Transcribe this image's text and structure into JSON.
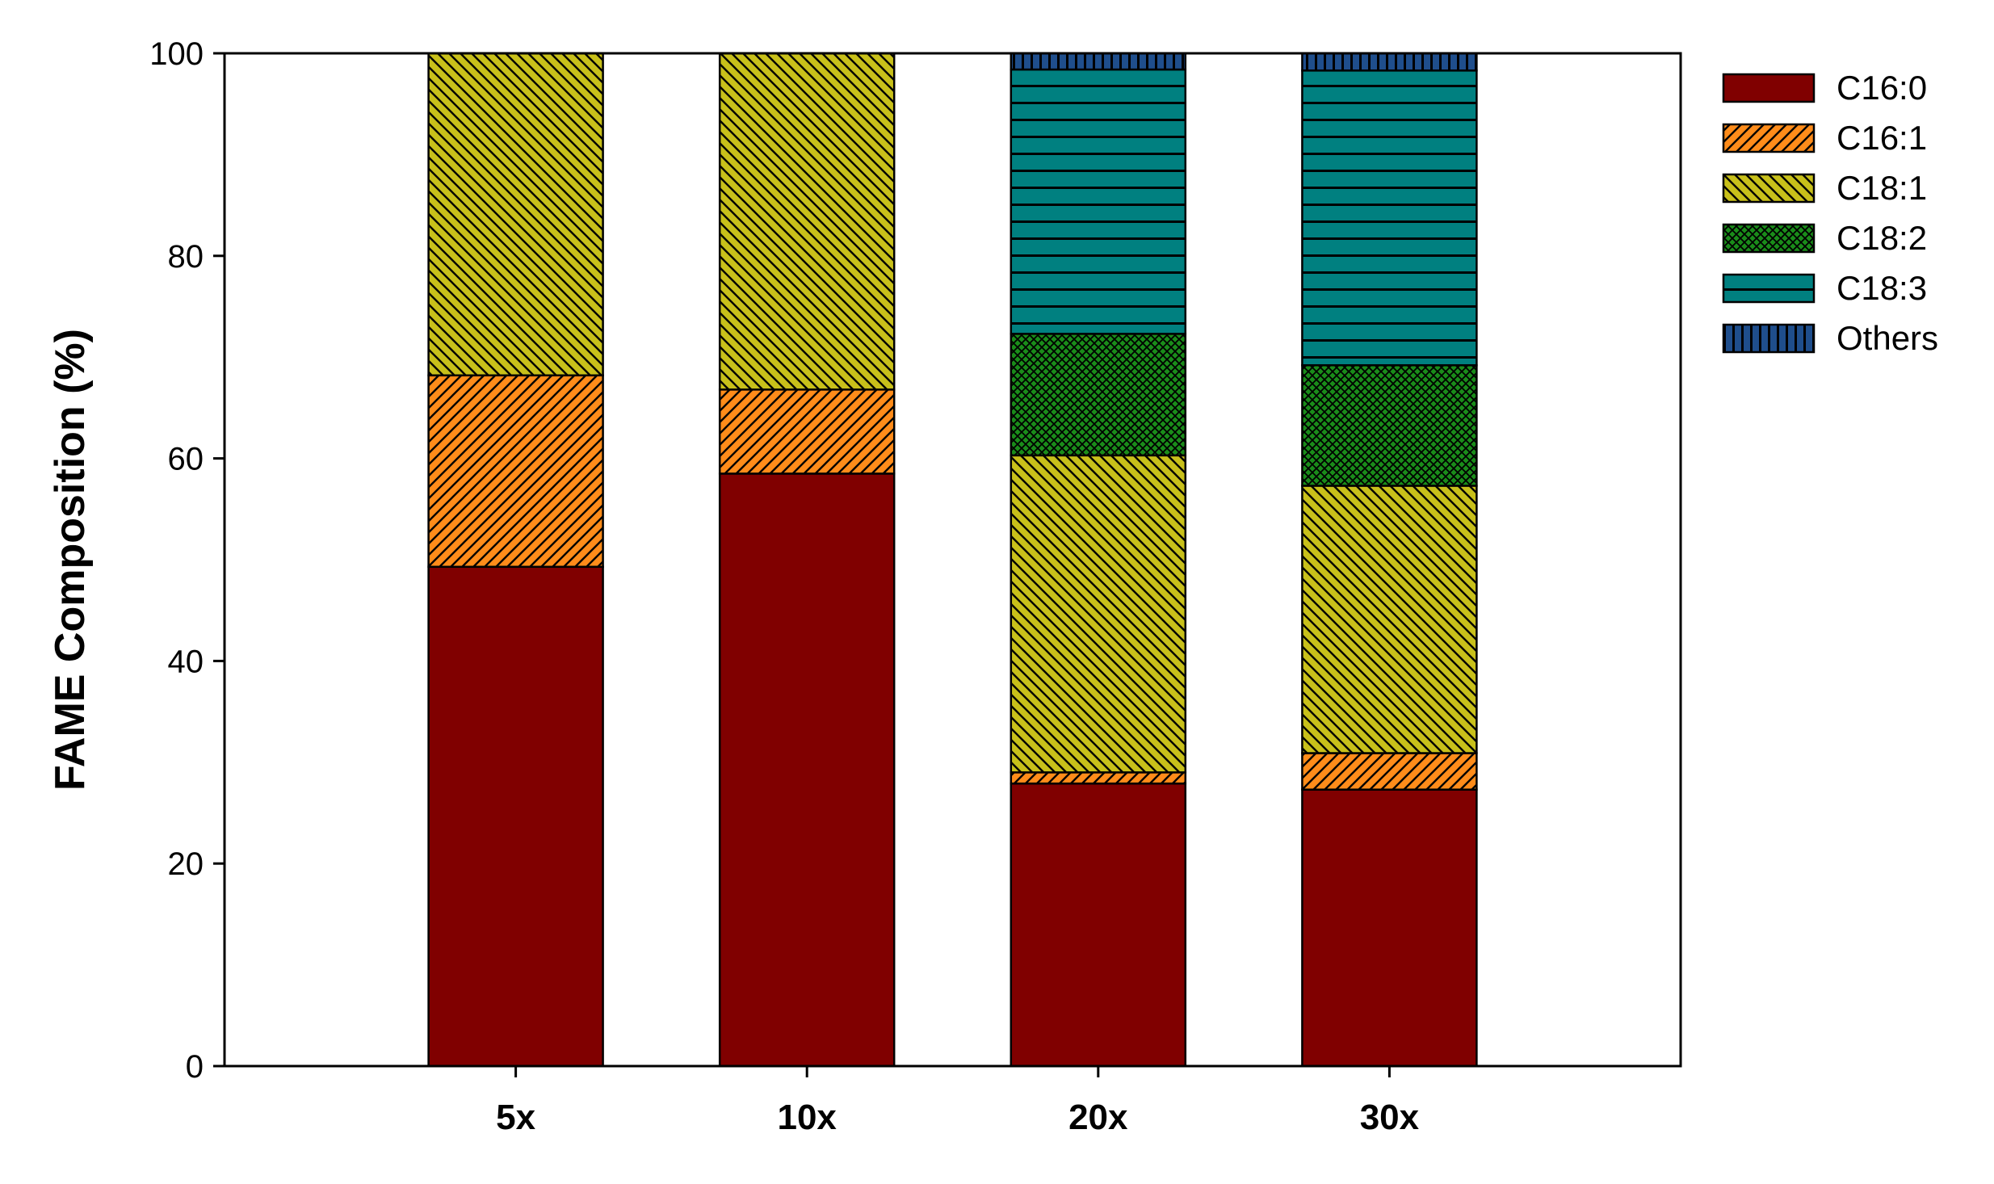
{
  "chart_data": {
    "type": "bar",
    "stacked": true,
    "ylabel": "FAME Composition (%)",
    "xlabel": "",
    "ylim": [
      0,
      100
    ],
    "yticks": [
      "0",
      "20",
      "40",
      "60",
      "80",
      "100"
    ],
    "categories": [
      "5x",
      "10x",
      "20x",
      "30x"
    ],
    "x_slots": 5,
    "grid": false,
    "legend_position": "right",
    "series": [
      {
        "name": "C16:0",
        "color": "#800000",
        "pattern": "solid",
        "values": [
          49.3,
          58.5,
          27.9,
          27.3
        ]
      },
      {
        "name": "C16:1",
        "color": "#ff8c1a",
        "pattern": "diagonal-up",
        "values": [
          18.9,
          8.3,
          1.1,
          3.6
        ]
      },
      {
        "name": "C18:1",
        "color": "#c8c01a",
        "pattern": "diagonal-down",
        "values": [
          31.8,
          33.2,
          31.3,
          26.4
        ]
      },
      {
        "name": "C18:2",
        "color": "#1a8c1a",
        "pattern": "crosshatch",
        "values": [
          0,
          0,
          12.0,
          11.9
        ]
      },
      {
        "name": "C18:3",
        "color": "#008080",
        "pattern": "horizontal",
        "values": [
          0,
          0,
          26.1,
          29.1
        ]
      },
      {
        "name": "Others",
        "color": "#1f4e8c",
        "pattern": "vertical",
        "values": [
          0,
          0,
          1.6,
          1.7
        ]
      }
    ]
  }
}
